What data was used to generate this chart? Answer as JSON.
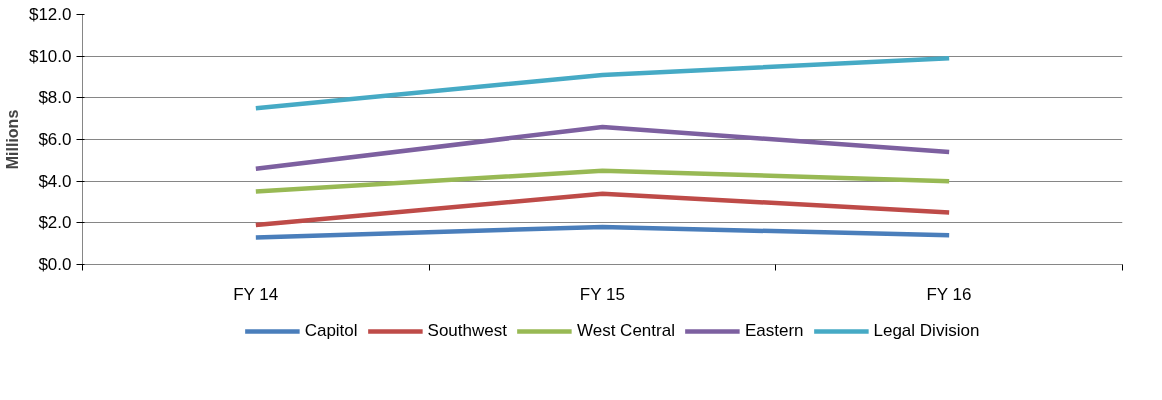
{
  "chart_data": {
    "type": "line",
    "ylabel": "Millions",
    "categories": [
      "FY 14",
      "FY 15",
      "FY 16"
    ],
    "series": [
      {
        "name": "Capitol",
        "color": "#4a7ebb",
        "values": [
          1.3,
          1.8,
          1.4
        ]
      },
      {
        "name": "Southwest",
        "color": "#be4b48",
        "values": [
          1.9,
          3.4,
          2.5
        ]
      },
      {
        "name": "West Central",
        "color": "#98b954",
        "values": [
          3.5,
          4.5,
          4.0
        ]
      },
      {
        "name": "Eastern",
        "color": "#7d60a0",
        "values": [
          4.6,
          6.6,
          5.4
        ]
      },
      {
        "name": "Legal Division",
        "color": "#46aac5",
        "values": [
          7.5,
          9.1,
          9.9
        ]
      }
    ],
    "ylim": [
      0,
      12
    ],
    "yticks": [
      {
        "value": 0,
        "label": "$0.0"
      },
      {
        "value": 2,
        "label": "$2.0"
      },
      {
        "value": 4,
        "label": "$4.0"
      },
      {
        "value": 6,
        "label": "$6.0"
      },
      {
        "value": 8,
        "label": "$8.0"
      },
      {
        "value": 10,
        "label": "$10.0"
      },
      {
        "value": 12,
        "label": "$12.0"
      }
    ],
    "grid": "y",
    "legend": "bottom",
    "marker": "none",
    "line_style": "solid"
  }
}
